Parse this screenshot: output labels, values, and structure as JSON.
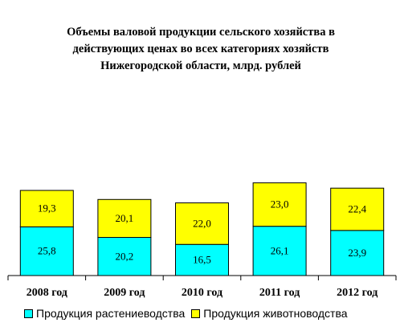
{
  "chart_data": {
    "type": "bar",
    "stacked": true,
    "title": "Объемы валовой продукции сельского хозяйства в действующих ценах во всех категориях хозяйств Нижегородской области, млрд. рублей",
    "title_lines": [
      "Объемы валовой продукции сельского хозяйства в",
      "действующих ценах во всех категориях хозяйств",
      "Нижегородской области, млрд. рублей"
    ],
    "categories": [
      "2008 год",
      "2009 год",
      "2010 год",
      "2011 год",
      "2012 год"
    ],
    "series": [
      {
        "name": "Продукция растениеводства",
        "values": [
          25.8,
          20.2,
          16.5,
          26.1,
          23.9
        ],
        "labels": [
          "25,8",
          "20,2",
          "16,5",
          "26,1",
          "23,9"
        ],
        "color": "#00FFFF"
      },
      {
        "name": "Продукция животноводства",
        "values": [
          19.3,
          20.1,
          22.0,
          23.0,
          22.4
        ],
        "labels": [
          "19,3",
          "20,1",
          "22,0",
          "23,0",
          "22,4"
        ],
        "color": "#FFFF00"
      }
    ],
    "ylim": [
      0,
      56
    ],
    "grid": false,
    "legend_position": "bottom"
  }
}
